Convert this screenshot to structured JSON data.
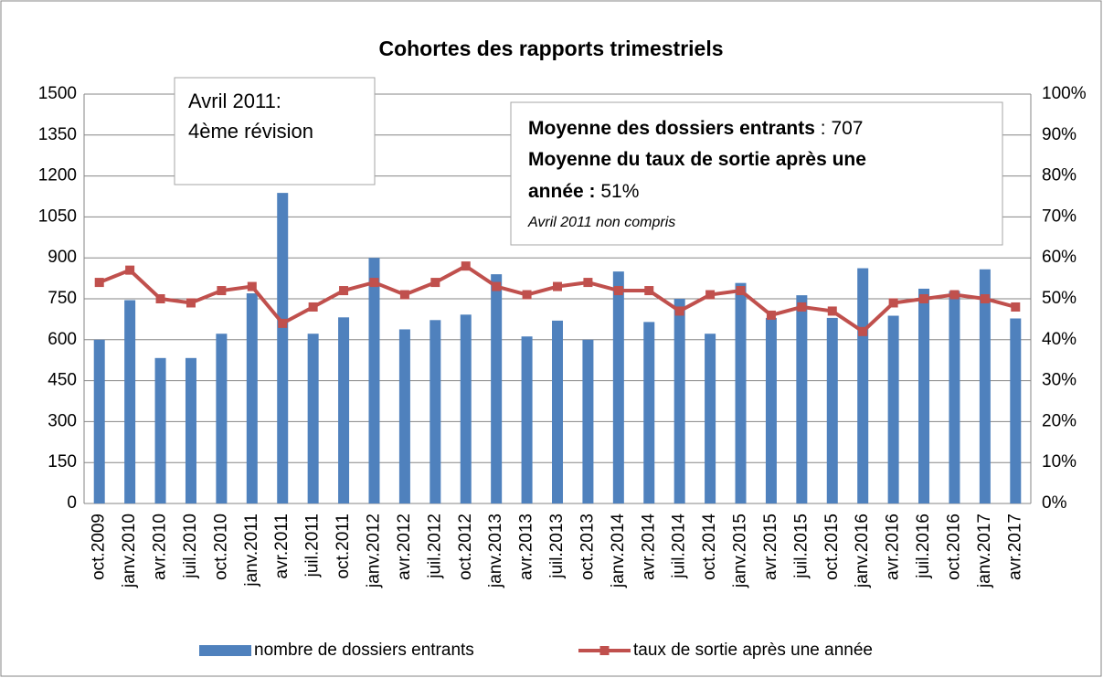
{
  "chart_data": {
    "type": "bar-line",
    "title": "Cohortes des rapports trimestriels",
    "categories": [
      "oct.2009",
      "janv.2010",
      "avr.2010",
      "juil.2010",
      "oct.2010",
      "janv.2011",
      "avr.2011",
      "juil.2011",
      "oct.2011",
      "janv.2012",
      "avr.2012",
      "juil.2012",
      "oct.2012",
      "janv.2013",
      "avr.2013",
      "juil.2013",
      "oct.2013",
      "janv.2014",
      "avr.2014",
      "juil.2014",
      "oct.2014",
      "janv.2015",
      "avr.2015",
      "juil.2015",
      "oct.2015",
      "janv.2016",
      "avr.2016",
      "juil.2016",
      "oct.2016",
      "janv.2017",
      "avr.2017"
    ],
    "series": [
      {
        "name": "nombre de dossiers entrants",
        "color": "#4f81bd",
        "kind": "bar",
        "values": [
          600,
          745,
          533,
          533,
          622,
          770,
          1138,
          622,
          682,
          900,
          638,
          672,
          692,
          840,
          612,
          670,
          600,
          850,
          665,
          750,
          622,
          808,
          680,
          763,
          680,
          862,
          688,
          787,
          778,
          858,
          678
        ]
      },
      {
        "name": "taux de sortie après une année",
        "color": "#c0504d",
        "kind": "line",
        "axis": "y2",
        "values": [
          54,
          57,
          50,
          49,
          52,
          53,
          44,
          48,
          52,
          54,
          51,
          54,
          58,
          53,
          51,
          53,
          54,
          52,
          52,
          47,
          51,
          52,
          46,
          48,
          47,
          42,
          49,
          50,
          51,
          50,
          48
        ]
      }
    ],
    "ylim": [
      0,
      1500
    ],
    "yticks": [
      0,
      150,
      300,
      450,
      600,
      750,
      900,
      1050,
      1200,
      1350,
      1500
    ],
    "y2lim": [
      0,
      100
    ],
    "y2ticks": [
      {
        "value": 0,
        "label": "0%"
      },
      {
        "value": 10,
        "label": "10%"
      },
      {
        "value": 20,
        "label": "20%"
      },
      {
        "value": 30,
        "label": "30%"
      },
      {
        "value": 40,
        "label": "40%"
      },
      {
        "value": 50,
        "label": "50%"
      },
      {
        "value": 60,
        "label": "60%"
      },
      {
        "value": 70,
        "label": "70%"
      },
      {
        "value": 80,
        "label": "80%"
      },
      {
        "value": 90,
        "label": "90%"
      },
      {
        "value": 100,
        "label": "100%"
      }
    ],
    "grid": true,
    "legend": "bottom",
    "annotations": [
      {
        "lines": [
          [
            {
              "text": "Avril 2011:"
            }
          ],
          [
            {
              "text": "4ème révision"
            }
          ]
        ]
      },
      {
        "lines": [
          [
            {
              "text": "Moyenne des dossiers entrants",
              "bold": true
            },
            {
              "text": " : 707"
            }
          ],
          [
            {
              "text": "Moyenne du taux de sortie après une",
              "bold": true
            }
          ],
          [
            {
              "text": "année :",
              "bold": true
            },
            {
              "text": " 51%"
            }
          ],
          [
            {
              "text": "Avril 2011 non compris",
              "italic": true
            }
          ]
        ]
      }
    ]
  }
}
